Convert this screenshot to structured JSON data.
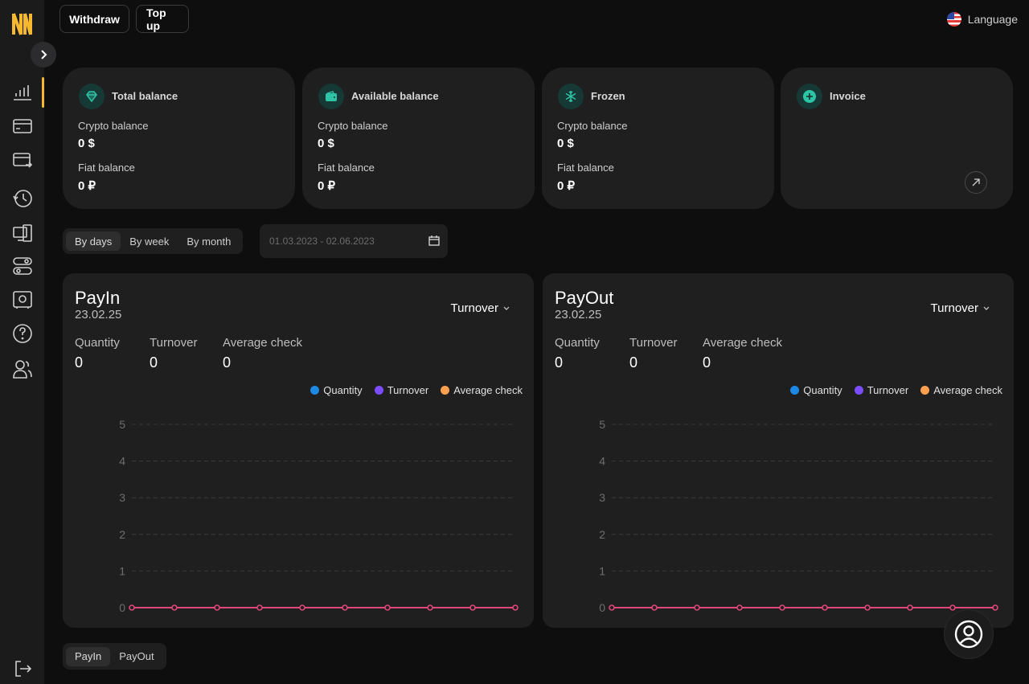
{
  "topbar": {
    "withdraw_label": "Withdraw",
    "topup_label": "Top up",
    "language_label": "Language"
  },
  "cards": [
    {
      "title": "Total balance",
      "icon": "gem-icon",
      "crypto_label": "Crypto balance",
      "crypto_value": "0 $",
      "fiat_label": "Fiat balance",
      "fiat_value": "0 ₽"
    },
    {
      "title": "Available balance",
      "icon": "wallet-icon",
      "crypto_label": "Crypto balance",
      "crypto_value": "0 $",
      "fiat_label": "Fiat balance",
      "fiat_value": "0 ₽"
    },
    {
      "title": "Frozen",
      "icon": "snowflake-icon",
      "crypto_label": "Crypto balance",
      "crypto_value": "0 $",
      "fiat_label": "Fiat balance",
      "fiat_value": "0 ₽"
    },
    {
      "title": "Invoice",
      "icon": "plus-icon"
    }
  ],
  "period": {
    "options": [
      "By days",
      "By week",
      "By month"
    ],
    "active": "By days",
    "date_range": "01.03.2023 - 02.06.2023"
  },
  "panels": [
    {
      "title": "PayIn",
      "date": "23.02.25",
      "dropdown": "Turnover",
      "metrics": [
        {
          "label": "Quantity",
          "value": "0"
        },
        {
          "label": "Turnover",
          "value": "0"
        },
        {
          "label": "Average check",
          "value": "0"
        }
      ]
    },
    {
      "title": "PayOut",
      "date": "23.02.25",
      "dropdown": "Turnover",
      "metrics": [
        {
          "label": "Quantity",
          "value": "0"
        },
        {
          "label": "Turnover",
          "value": "0"
        },
        {
          "label": "Average check",
          "value": "0"
        }
      ]
    }
  ],
  "legend": [
    {
      "name": "Quantity",
      "color": "#1e88e5"
    },
    {
      "name": "Turnover",
      "color": "#7c4dff"
    },
    {
      "name": "Average check",
      "color": "#ff9f50"
    }
  ],
  "chart_data": [
    {
      "type": "line",
      "title": "PayIn",
      "ylim": [
        0,
        5
      ],
      "yticks": [
        "0",
        "1",
        "2",
        "3",
        "4",
        "5"
      ],
      "grid": true,
      "legend": "top-right",
      "series": [
        {
          "name": "Turnover",
          "color": "#e0457b",
          "values": [
            0,
            0,
            0,
            0,
            0,
            0,
            0,
            0,
            0,
            0
          ]
        }
      ]
    },
    {
      "type": "line",
      "title": "PayOut",
      "ylim": [
        0,
        5
      ],
      "yticks": [
        "0",
        "1",
        "2",
        "3",
        "4",
        "5"
      ],
      "grid": true,
      "legend": "top-right",
      "series": [
        {
          "name": "Turnover",
          "color": "#e0457b",
          "values": [
            0,
            0,
            0,
            0,
            0,
            0,
            0,
            0,
            0,
            0
          ]
        }
      ]
    }
  ],
  "bottom_tabs": {
    "options": [
      "PayIn",
      "PayOut"
    ],
    "active": "PayIn"
  },
  "colors": {
    "accent": "#f5b82e",
    "card_bg": "#1f1f1f",
    "icon_bg": "#173935",
    "icon_fg": "#2ec4a6"
  }
}
